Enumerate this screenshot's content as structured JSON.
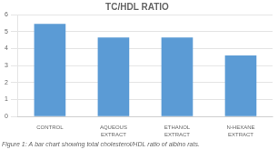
{
  "chart_data": {
    "type": "bar",
    "title": "TC/HDL RATIO",
    "caption": "Figure 1: A bar chart showing total cholesterol/HDL ratio of albino rats.",
    "categories": [
      "CONTROL",
      "AQUEOUS EXTRACT",
      "ETHANOL EXTRACT",
      "N-HEXANE EXTRACT"
    ],
    "values": [
      5.45,
      4.65,
      4.65,
      3.6
    ],
    "color": "#5B9BD5",
    "ylim": [
      0,
      6
    ],
    "yticks": [
      0,
      1,
      2,
      3,
      4,
      5,
      6
    ],
    "grid": true
  }
}
